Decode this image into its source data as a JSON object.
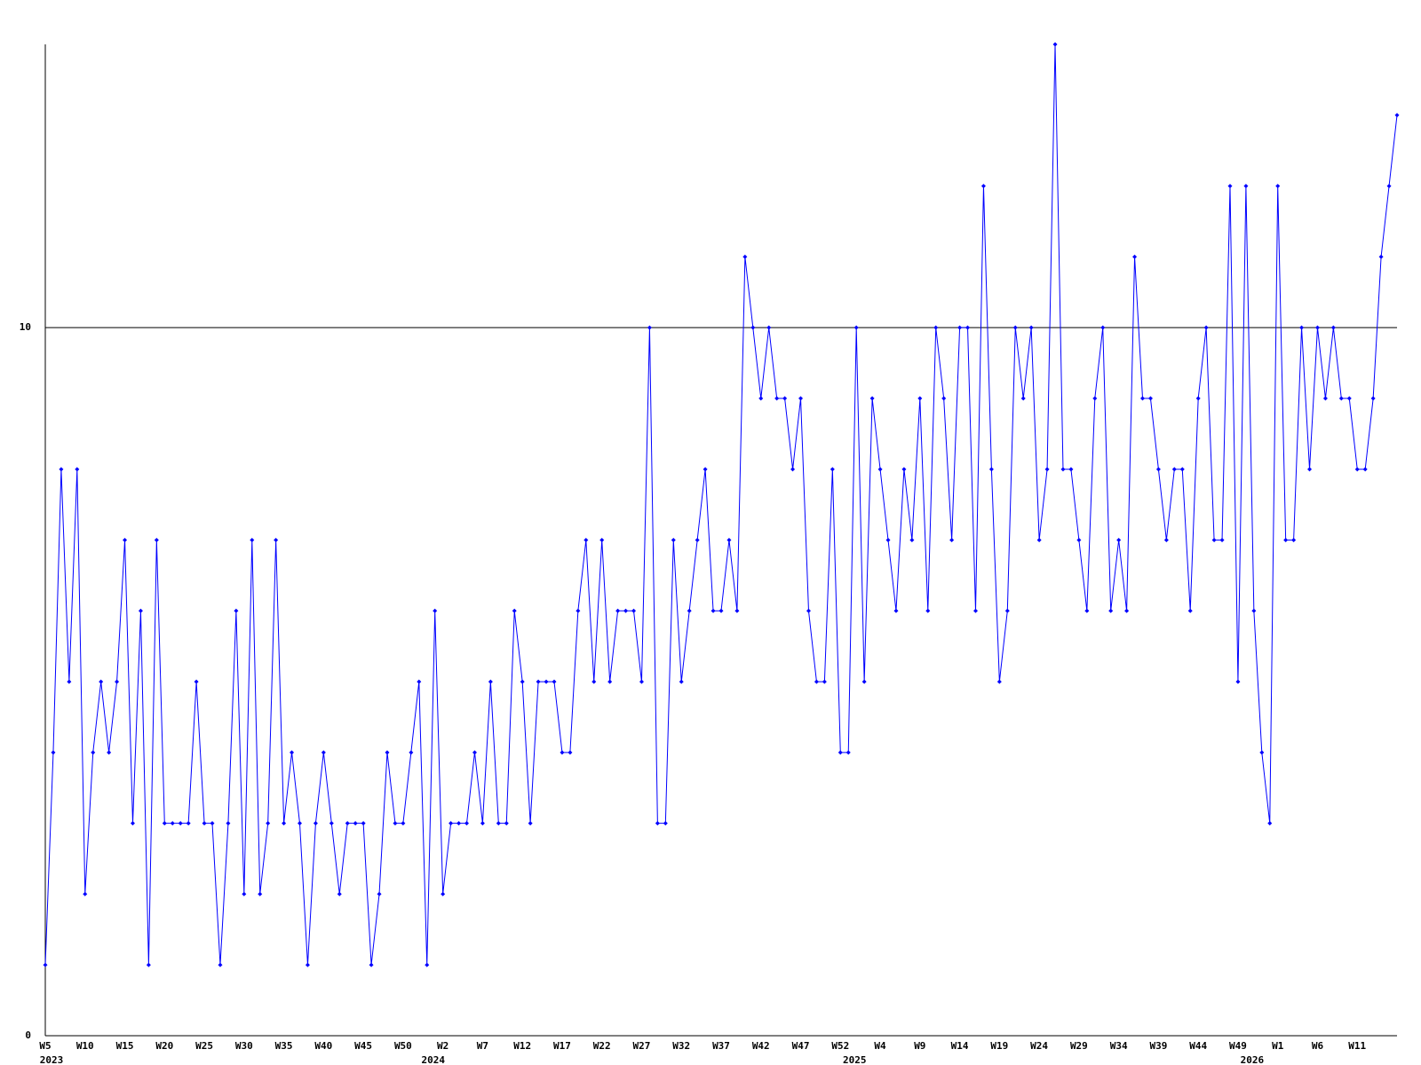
{
  "chart_data": {
    "type": "line",
    "categories": [
      "W5",
      null,
      null,
      null,
      null,
      "W10",
      null,
      null,
      null,
      null,
      "W15",
      null,
      null,
      null,
      null,
      "W20",
      null,
      null,
      null,
      null,
      "W25",
      null,
      null,
      null,
      null,
      "W30",
      null,
      null,
      null,
      null,
      "W35",
      null,
      null,
      null,
      null,
      "W40",
      null,
      null,
      null,
      null,
      "W45",
      null,
      null,
      null,
      null,
      "W50",
      null,
      null,
      null,
      null,
      "W2",
      null,
      null,
      null,
      null,
      "W7",
      null,
      null,
      null,
      null,
      "W12",
      null,
      null,
      null,
      null,
      "W17",
      null,
      null,
      null,
      null,
      "W22",
      null,
      null,
      null,
      null,
      "W27",
      null,
      null,
      null,
      null,
      "W32",
      null,
      null,
      null,
      null,
      "W37",
      null,
      null,
      null,
      null,
      "W42",
      null,
      null,
      null,
      null,
      "W47",
      null,
      null,
      null,
      null,
      "W52",
      null,
      null,
      null,
      null,
      "W4",
      null,
      null,
      null,
      null,
      "W9",
      null,
      null,
      null,
      null,
      "W14",
      null,
      null,
      null,
      null,
      "W19",
      null,
      null,
      null,
      null,
      "W24",
      null,
      null,
      null,
      null,
      "W29",
      null,
      null,
      null,
      null,
      "W34",
      null,
      null,
      null,
      null,
      "W39",
      null,
      null,
      null,
      null,
      "W44",
      null,
      null,
      null,
      null,
      "W49",
      null,
      null,
      null,
      null,
      "W1",
      null,
      null,
      null,
      null,
      "W6",
      null,
      null,
      null,
      null,
      "W11",
      null,
      null,
      null,
      null,
      null
    ],
    "category_years": [
      "2023",
      null,
      null,
      null,
      null,
      null,
      null,
      null,
      null,
      null,
      null,
      null,
      null,
      null,
      null,
      null,
      null,
      null,
      null,
      null,
      null,
      null,
      null,
      null,
      null,
      null,
      null,
      null,
      null,
      null,
      null,
      null,
      null,
      null,
      null,
      null,
      null,
      null,
      null,
      null,
      null,
      null,
      null,
      null,
      null,
      null,
      null,
      null,
      "2024",
      null,
      null,
      null,
      null,
      null,
      null,
      null,
      null,
      null,
      null,
      null,
      null,
      null,
      null,
      null,
      null,
      null,
      null,
      null,
      null,
      null,
      null,
      null,
      null,
      null,
      null,
      null,
      null,
      null,
      null,
      null,
      null,
      null,
      null,
      null,
      null,
      null,
      null,
      null,
      null,
      null,
      null,
      null,
      null,
      null,
      null,
      null,
      null,
      null,
      null,
      null,
      null,
      "2025",
      null,
      null,
      null,
      null,
      null,
      null,
      null,
      null,
      null,
      null,
      null,
      null,
      null,
      null,
      null,
      null,
      null,
      null,
      null,
      null,
      null,
      null,
      null,
      null,
      null,
      null,
      null,
      null,
      null,
      null,
      null,
      null,
      null,
      null,
      null,
      null,
      null,
      null,
      null,
      null,
      null,
      null,
      null,
      null,
      null,
      null,
      null,
      null,
      null,
      "2026",
      null,
      null,
      null,
      null,
      null,
      null,
      null,
      null,
      null,
      null,
      null,
      null,
      null,
      null,
      null
    ],
    "series": [
      {
        "color": "#0000ff",
        "values": [
          1,
          4,
          8,
          5,
          8,
          2,
          4,
          5,
          4,
          5,
          7,
          3,
          6,
          1,
          7,
          3,
          3,
          3,
          3,
          5,
          3,
          3,
          1,
          3,
          6,
          2,
          7,
          2,
          3,
          7,
          3,
          4,
          3,
          1,
          3,
          4,
          3,
          2,
          3,
          3,
          3,
          1,
          2,
          4,
          3,
          3,
          4,
          5,
          1,
          6,
          2,
          3,
          3,
          3,
          4,
          3,
          5,
          3,
          3,
          6,
          5,
          3,
          5,
          5,
          5,
          4,
          4,
          6,
          7,
          5,
          7,
          5,
          6,
          6,
          6,
          5,
          10,
          3,
          3,
          7,
          5,
          6,
          7,
          8,
          6,
          6,
          7,
          6,
          11,
          10,
          9,
          10,
          9,
          9,
          8,
          9,
          6,
          5,
          5,
          8,
          4,
          4,
          10,
          5,
          9,
          8,
          7,
          6,
          8,
          7,
          9,
          6,
          10,
          9,
          7,
          10,
          10,
          6,
          12,
          8,
          5,
          6,
          10,
          9,
          10,
          7,
          8,
          14,
          8,
          8,
          7,
          6,
          9,
          10,
          6,
          7,
          6,
          11,
          9,
          9,
          8,
          7,
          8,
          8,
          6,
          9,
          10,
          7,
          7,
          12,
          5,
          12,
          6,
          4,
          3,
          12,
          7,
          7,
          10,
          8,
          10,
          9,
          10,
          9,
          9,
          8,
          8,
          9,
          11,
          12,
          13
        ]
      }
    ],
    "ylim": [
      0,
      14
    ],
    "yticks": [
      0,
      10
    ],
    "grid": true
  }
}
